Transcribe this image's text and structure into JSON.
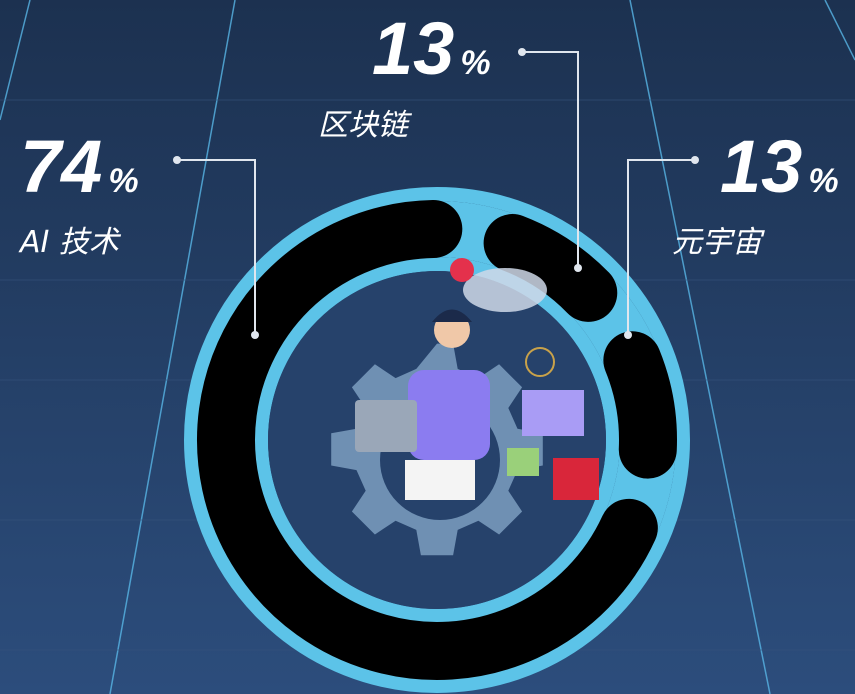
{
  "chart_data": {
    "type": "donut",
    "categories": [
      "AI 技术",
      "区块链",
      "元宇宙"
    ],
    "values": [
      74,
      13,
      13
    ],
    "unit": "%",
    "color": "#000000",
    "ring_color": "#5cc3e8"
  }
}
